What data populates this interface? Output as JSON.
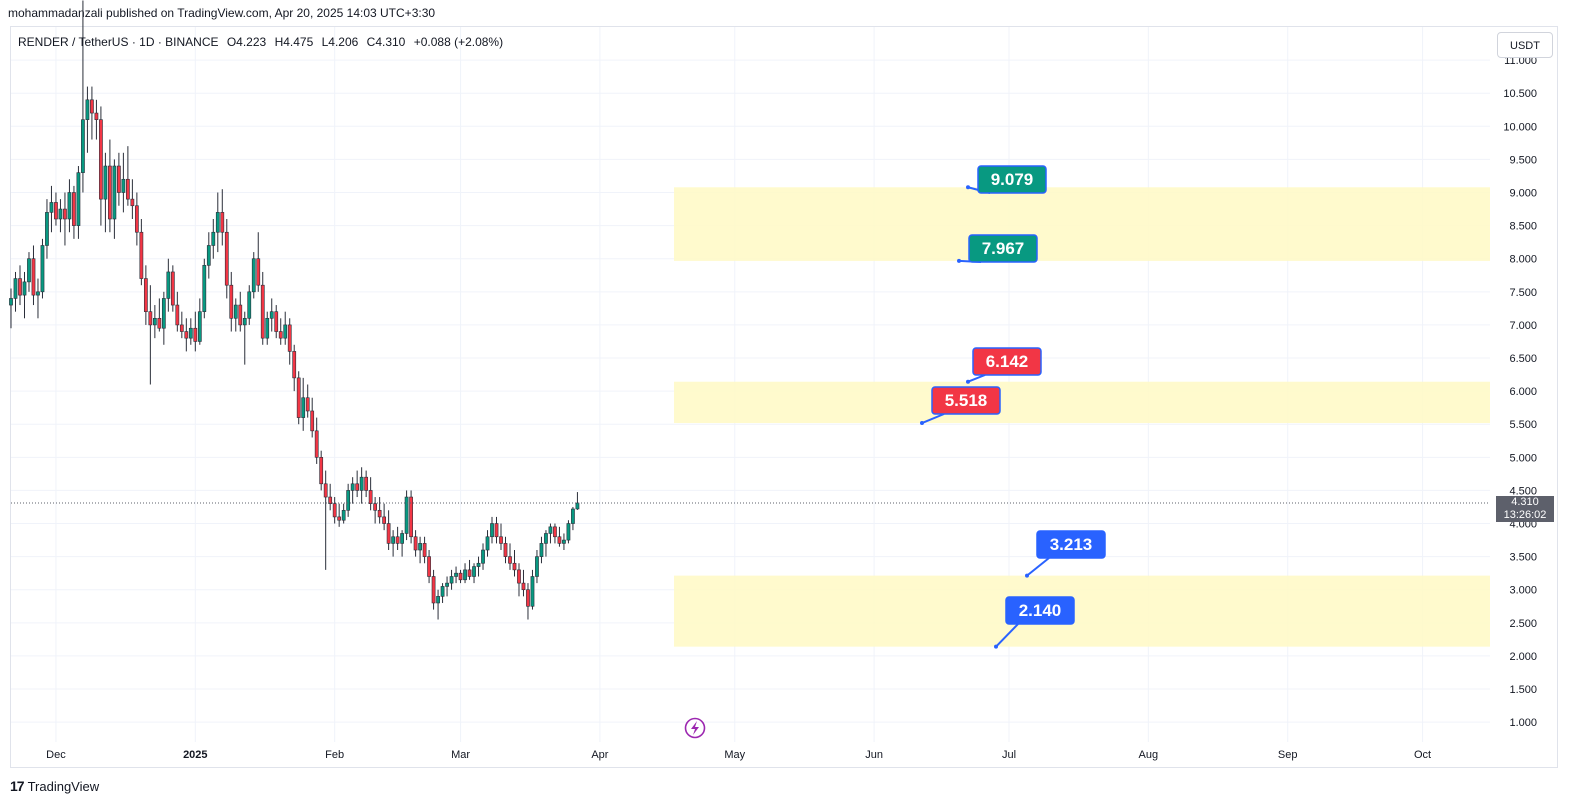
{
  "header": {
    "published_by": "mohammadanzali published on TradingView.com, Apr 20, 2025 14:03 UTC+3:30"
  },
  "legend": {
    "symbol": "RENDER / TetherUS · 1D · BINANCE",
    "open": "O4.223",
    "high": "H4.475",
    "low": "L4.206",
    "close": "C4.310",
    "change": "+0.088 (+2.08%)"
  },
  "currency_button": "USDT",
  "last_price": {
    "value": "4.310",
    "countdown": "13:26:02"
  },
  "footer": {
    "logo_text": "TradingView",
    "logo_mark": "17"
  },
  "colors": {
    "up": "#089981",
    "down": "#f23645",
    "zone": "#fff9c4",
    "blue_label": "#2962ff",
    "green_label": "#089981",
    "red_label": "#f23645",
    "event_icon": "#9c27b0"
  },
  "event_icon": "lightning-icon",
  "chart_data": {
    "type": "candlestick",
    "y_axis": {
      "position": "right",
      "range": [
        0.7,
        11.5
      ],
      "ticks": [
        "1.000",
        "1.500",
        "2.000",
        "2.500",
        "3.000",
        "3.500",
        "4.000",
        "4.500",
        "5.000",
        "5.500",
        "6.000",
        "6.500",
        "7.000",
        "7.500",
        "8.000",
        "8.500",
        "9.000",
        "9.500",
        "10.000",
        "10.500",
        "11.000"
      ]
    },
    "x_axis": {
      "range": [
        "2024-11-21",
        "2025-10-16"
      ],
      "ticks": [
        {
          "label": "Dec",
          "date": "2024-12-01"
        },
        {
          "label": "2025",
          "date": "2025-01-01"
        },
        {
          "label": "Feb",
          "date": "2025-02-01"
        },
        {
          "label": "Mar",
          "date": "2025-03-01"
        },
        {
          "label": "Apr",
          "date": "2025-04-01"
        },
        {
          "label": "May",
          "date": "2025-05-01"
        },
        {
          "label": "Jun",
          "date": "2025-06-01"
        },
        {
          "label": "Jul",
          "date": "2025-07-01"
        },
        {
          "label": "Aug",
          "date": "2025-08-01"
        },
        {
          "label": "Sep",
          "date": "2025-09-01"
        },
        {
          "label": "Oct",
          "date": "2025-10-01"
        }
      ]
    },
    "grid": true,
    "candles_start_date": "2024-11-21",
    "candles": [
      [
        7.3,
        7.55,
        6.95,
        7.4
      ],
      [
        7.4,
        7.8,
        7.2,
        7.7
      ],
      [
        7.7,
        7.9,
        7.3,
        7.45
      ],
      [
        7.45,
        7.8,
        7.1,
        7.65
      ],
      [
        7.65,
        8.1,
        7.5,
        8.0
      ],
      [
        8.0,
        8.2,
        7.3,
        7.45
      ],
      [
        7.45,
        7.7,
        7.1,
        7.5
      ],
      [
        7.5,
        8.3,
        7.4,
        8.2
      ],
      [
        8.2,
        8.9,
        8.0,
        8.7
      ],
      [
        8.7,
        9.1,
        8.4,
        8.85
      ],
      [
        8.85,
        9.0,
        8.5,
        8.6
      ],
      [
        8.6,
        8.9,
        8.4,
        8.75
      ],
      [
        8.75,
        9.0,
        8.2,
        8.6
      ],
      [
        8.6,
        9.2,
        8.4,
        9.0
      ],
      [
        9.0,
        9.1,
        8.3,
        8.5
      ],
      [
        8.5,
        9.4,
        8.3,
        9.3
      ],
      [
        9.3,
        11.9,
        9.0,
        10.1
      ],
      [
        10.1,
        10.6,
        9.6,
        10.4
      ],
      [
        10.4,
        10.6,
        9.8,
        10.2
      ],
      [
        10.2,
        10.4,
        9.8,
        10.1
      ],
      [
        10.1,
        10.3,
        8.5,
        8.9
      ],
      [
        8.9,
        9.6,
        8.4,
        9.4
      ],
      [
        9.4,
        9.8,
        8.4,
        8.6
      ],
      [
        8.6,
        9.5,
        8.3,
        9.4
      ],
      [
        9.4,
        9.6,
        8.8,
        9.0
      ],
      [
        9.0,
        9.6,
        8.7,
        9.2
      ],
      [
        9.2,
        9.7,
        8.8,
        8.9
      ],
      [
        8.9,
        9.2,
        8.6,
        8.8
      ],
      [
        8.8,
        9.0,
        8.2,
        8.4
      ],
      [
        8.4,
        8.6,
        7.6,
        7.7
      ],
      [
        7.7,
        7.9,
        7.0,
        7.2
      ],
      [
        7.2,
        7.6,
        6.1,
        7.0
      ],
      [
        7.0,
        7.3,
        6.8,
        7.1
      ],
      [
        7.1,
        7.4,
        6.9,
        6.95
      ],
      [
        6.95,
        7.5,
        6.7,
        7.4
      ],
      [
        7.4,
        8.0,
        7.2,
        7.8
      ],
      [
        7.8,
        7.9,
        7.2,
        7.3
      ],
      [
        7.3,
        7.5,
        6.9,
        7.0
      ],
      [
        7.0,
        7.2,
        6.8,
        6.9
      ],
      [
        6.9,
        7.1,
        6.6,
        6.8
      ],
      [
        6.8,
        7.1,
        6.7,
        6.95
      ],
      [
        6.95,
        7.2,
        6.6,
        6.75
      ],
      [
        6.75,
        7.4,
        6.7,
        7.2
      ],
      [
        7.2,
        8.0,
        7.1,
        7.9
      ],
      [
        7.9,
        8.4,
        7.7,
        8.2
      ],
      [
        8.2,
        8.6,
        8.0,
        8.4
      ],
      [
        8.4,
        9.0,
        8.1,
        8.7
      ],
      [
        8.7,
        9.05,
        8.2,
        8.4
      ],
      [
        8.4,
        8.6,
        7.4,
        7.6
      ],
      [
        7.6,
        7.8,
        6.9,
        7.1
      ],
      [
        7.1,
        7.4,
        6.9,
        7.3
      ],
      [
        7.3,
        7.5,
        6.9,
        7.0
      ],
      [
        7.0,
        7.2,
        6.4,
        7.1
      ],
      [
        7.1,
        7.6,
        7.0,
        7.5
      ],
      [
        7.5,
        8.1,
        7.4,
        8.0
      ],
      [
        8.0,
        8.4,
        7.5,
        7.6
      ],
      [
        7.6,
        7.8,
        6.7,
        6.8
      ],
      [
        6.8,
        7.2,
        6.7,
        7.1
      ],
      [
        7.1,
        7.4,
        6.9,
        7.2
      ],
      [
        7.2,
        7.3,
        6.8,
        6.9
      ],
      [
        6.9,
        7.1,
        6.7,
        6.8
      ],
      [
        6.8,
        7.2,
        6.7,
        7.0
      ],
      [
        7.0,
        7.1,
        6.4,
        6.6
      ],
      [
        6.6,
        6.7,
        6.0,
        6.2
      ],
      [
        6.2,
        6.3,
        5.5,
        5.6
      ],
      [
        5.6,
        6.2,
        5.4,
        5.9
      ],
      [
        5.9,
        6.1,
        5.6,
        5.7
      ],
      [
        5.7,
        5.9,
        5.3,
        5.4
      ],
      [
        5.4,
        5.6,
        4.9,
        5.0
      ],
      [
        5.0,
        5.1,
        4.5,
        4.6
      ],
      [
        4.6,
        4.8,
        3.3,
        4.4
      ],
      [
        4.4,
        4.6,
        4.2,
        4.3
      ],
      [
        4.3,
        4.4,
        4.0,
        4.1
      ],
      [
        4.1,
        4.3,
        3.95,
        4.05
      ],
      [
        4.05,
        4.3,
        4.0,
        4.2
      ],
      [
        4.2,
        4.6,
        4.1,
        4.5
      ],
      [
        4.5,
        4.7,
        4.3,
        4.6
      ],
      [
        4.6,
        4.8,
        4.4,
        4.5
      ],
      [
        4.5,
        4.85,
        4.3,
        4.7
      ],
      [
        4.7,
        4.8,
        4.4,
        4.5
      ],
      [
        4.5,
        4.7,
        4.2,
        4.3
      ],
      [
        4.3,
        4.4,
        4.0,
        4.2
      ],
      [
        4.2,
        4.4,
        4.0,
        4.1
      ],
      [
        4.1,
        4.3,
        3.9,
        4.0
      ],
      [
        4.0,
        4.2,
        3.6,
        3.7
      ],
      [
        3.7,
        3.9,
        3.5,
        3.8
      ],
      [
        3.8,
        3.95,
        3.6,
        3.7
      ],
      [
        3.7,
        3.9,
        3.5,
        3.85
      ],
      [
        3.85,
        4.5,
        3.75,
        4.4
      ],
      [
        4.4,
        4.5,
        3.7,
        3.8
      ],
      [
        3.8,
        3.9,
        3.5,
        3.6
      ],
      [
        3.6,
        3.8,
        3.4,
        3.7
      ],
      [
        3.7,
        3.8,
        3.4,
        3.5
      ],
      [
        3.5,
        3.6,
        3.1,
        3.2
      ],
      [
        3.2,
        3.3,
        2.7,
        2.8
      ],
      [
        2.8,
        3.0,
        2.55,
        2.9
      ],
      [
        2.9,
        3.1,
        2.8,
        3.05
      ],
      [
        3.05,
        3.2,
        2.9,
        3.1
      ],
      [
        3.1,
        3.3,
        3.0,
        3.2
      ],
      [
        3.2,
        3.35,
        3.1,
        3.25
      ],
      [
        3.25,
        3.3,
        3.1,
        3.15
      ],
      [
        3.15,
        3.4,
        3.1,
        3.3
      ],
      [
        3.3,
        3.45,
        3.15,
        3.2
      ],
      [
        3.2,
        3.4,
        3.1,
        3.35
      ],
      [
        3.35,
        3.5,
        3.2,
        3.4
      ],
      [
        3.4,
        3.7,
        3.3,
        3.6
      ],
      [
        3.6,
        3.9,
        3.5,
        3.8
      ],
      [
        3.8,
        4.1,
        3.7,
        4.0
      ],
      [
        4.0,
        4.1,
        3.7,
        3.8
      ],
      [
        3.8,
        4.0,
        3.6,
        3.7
      ],
      [
        3.7,
        3.8,
        3.4,
        3.5
      ],
      [
        3.5,
        3.7,
        3.3,
        3.4
      ],
      [
        3.4,
        3.6,
        3.2,
        3.3
      ],
      [
        3.3,
        3.4,
        2.9,
        3.1
      ],
      [
        3.1,
        3.3,
        2.9,
        3.0
      ],
      [
        3.0,
        3.1,
        2.55,
        2.75
      ],
      [
        2.75,
        3.3,
        2.7,
        3.2
      ],
      [
        3.2,
        3.6,
        3.1,
        3.5
      ],
      [
        3.5,
        3.8,
        3.4,
        3.7
      ],
      [
        3.7,
        3.9,
        3.5,
        3.85
      ],
      [
        3.85,
        4.0,
        3.7,
        3.95
      ],
      [
        3.95,
        4.0,
        3.7,
        3.8
      ],
      [
        3.8,
        3.95,
        3.65,
        3.7
      ],
      [
        3.7,
        3.85,
        3.6,
        3.75
      ],
      [
        3.75,
        4.05,
        3.7,
        4.0
      ],
      [
        4.0,
        4.25,
        3.9,
        4.22
      ],
      [
        4.22,
        4.475,
        4.206,
        4.31
      ]
    ],
    "zones": [
      {
        "from": 7.967,
        "to": 9.079
      },
      {
        "from": 5.518,
        "to": 6.142
      },
      {
        "from": 2.14,
        "to": 3.213
      }
    ],
    "annotations": [
      {
        "text": "9.079",
        "price": 9.079,
        "color": "green"
      },
      {
        "text": "7.967",
        "price": 7.967,
        "color": "green"
      },
      {
        "text": "6.142",
        "price": 6.142,
        "color": "red"
      },
      {
        "text": "5.518",
        "price": 5.518,
        "color": "red"
      },
      {
        "text": "3.213",
        "price": 3.213,
        "color": "blue"
      },
      {
        "text": "2.140",
        "price": 2.14,
        "color": "blue"
      }
    ],
    "last_price_line": 4.31
  }
}
